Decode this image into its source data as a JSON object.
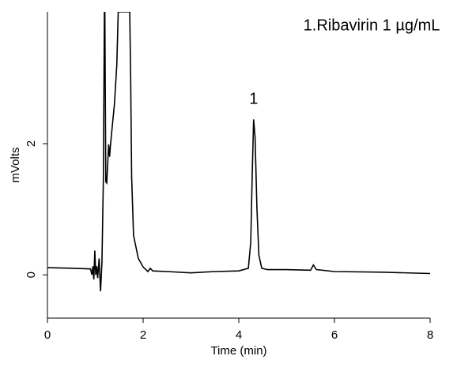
{
  "chart_data": {
    "type": "line",
    "annotations": [
      "1.Ribavirin  1 µg/mL",
      "1"
    ],
    "xlabel": "Time (min)",
    "ylabel": "mVolts",
    "x": [
      0,
      0.5,
      0.9,
      0.93,
      0.95,
      0.97,
      0.99,
      1.01,
      1.03,
      1.05,
      1.08,
      1.11,
      1.14,
      1.17,
      1.19,
      1.2,
      1.22,
      1.24,
      1.26,
      1.28,
      1.3,
      1.32,
      1.36,
      1.4,
      1.45,
      1.48,
      1.72,
      1.74,
      1.76,
      1.8,
      1.9,
      2.0,
      2.1,
      2.15,
      2.2,
      2.5,
      3.0,
      3.5,
      4.0,
      4.2,
      4.25,
      4.28,
      4.31,
      4.34,
      4.38,
      4.42,
      4.48,
      4.6,
      5.0,
      5.5,
      5.56,
      5.62,
      6.0,
      7.0,
      8.0
    ],
    "series": [
      {
        "name": "Ribavirin",
        "color": "#000000",
        "values": [
          0.11,
          0.1,
          0.09,
          0.0,
          0.13,
          -0.07,
          0.37,
          0.0,
          0.13,
          -0.05,
          0.25,
          -0.25,
          0.2,
          1.5,
          4.01,
          4.01,
          1.42,
          1.4,
          1.7,
          1.99,
          1.8,
          2.0,
          2.3,
          2.6,
          3.2,
          4.01,
          4.01,
          3.0,
          1.5,
          0.6,
          0.25,
          0.12,
          0.05,
          0.1,
          0.06,
          0.05,
          0.03,
          0.05,
          0.06,
          0.1,
          0.5,
          1.5,
          2.37,
          2.1,
          1.0,
          0.3,
          0.1,
          0.08,
          0.08,
          0.07,
          0.15,
          0.08,
          0.05,
          0.04,
          0.02
        ]
      }
    ],
    "xlim": [
      0,
      8
    ],
    "xticks": [
      0,
      2,
      4,
      6,
      8
    ],
    "ylim": [
      -0.66,
      4.01
    ],
    "yticks": [
      0,
      2
    ],
    "grid": false
  }
}
